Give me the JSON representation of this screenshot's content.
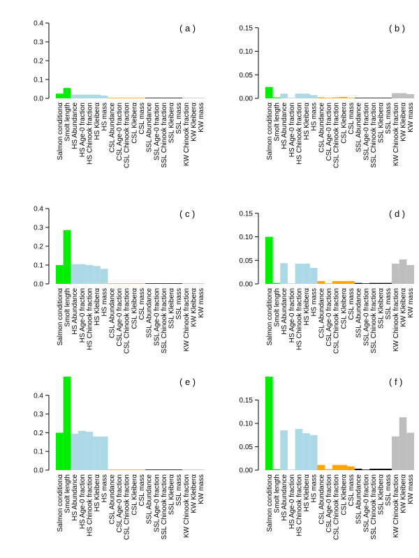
{
  "colors": {
    "salmon": "#00ee00",
    "harbor_seal": "#add8e6",
    "california_sea_lion": "#ffa500",
    "steller_sea_lion": "#000000",
    "killer_whale": "#bebebe"
  },
  "chart_data": [
    {
      "type": "bar",
      "panel": "( a )",
      "categories": [
        "Salmon conditionα",
        "Smolt length",
        "HS Abundance",
        "HS Age-0 fraction",
        "HS Chinook fraction",
        "HS Kleiberα",
        "HS mass",
        "CSL Abundance",
        "CSL Age-0 fraction",
        "CSL Chinook fraction",
        "CSL Kleiberα",
        "CSL mass",
        "SSL Abundance",
        "SSL Age-0 fraction",
        "SSL Chinook fraction",
        "SSL Kleiberα",
        "SSL mass",
        "KW Chinook fraction",
        "KW Kleiberα",
        "KW mass"
      ],
      "groups": [
        "salmon",
        "salmon",
        "harbor_seal",
        "harbor_seal",
        "harbor_seal",
        "harbor_seal",
        "harbor_seal",
        "california_sea_lion",
        "california_sea_lion",
        "california_sea_lion",
        "california_sea_lion",
        "california_sea_lion",
        "steller_sea_lion",
        "steller_sea_lion",
        "steller_sea_lion",
        "steller_sea_lion",
        "steller_sea_lion",
        "killer_whale",
        "killer_whale",
        "killer_whale"
      ],
      "values": [
        0.025,
        0.055,
        0.02,
        0.02,
        0.02,
        0.02,
        0.015,
        0.002,
        0.002,
        0.002,
        0.002,
        0.002,
        0.001,
        0.001,
        0.001,
        0.001,
        0.001,
        0.0005,
        0.0005,
        0.0005
      ],
      "yticks": [
        0.0,
        0.1,
        0.2,
        0.3,
        0.4
      ],
      "ytick_labels": [
        "0.0",
        "0.1",
        "0.2",
        "0.3",
        "0.4"
      ],
      "ylim": [
        0,
        0.4
      ]
    },
    {
      "type": "bar",
      "panel": "( b )",
      "categories": [
        "Salmon conditionα",
        "Smolt length",
        "HS Abundance",
        "HS Age-0 fraction",
        "HS Chinook fraction",
        "HS Kleiberα",
        "HS mass",
        "CSL Abundance",
        "CSL Age-0 fraction",
        "CSL Chinook fraction",
        "CSL Kleiberα",
        "CSL mass",
        "SSL Abundance",
        "SSL Age-0 fraction",
        "SSL Chinook fraction",
        "SSL Kleiberα",
        "SSL mass",
        "KW Chinook fraction",
        "KW Kleiberα",
        "KW mass"
      ],
      "groups": [
        "salmon",
        "salmon",
        "harbor_seal",
        "harbor_seal",
        "harbor_seal",
        "harbor_seal",
        "harbor_seal",
        "california_sea_lion",
        "california_sea_lion",
        "california_sea_lion",
        "california_sea_lion",
        "california_sea_lion",
        "steller_sea_lion",
        "steller_sea_lion",
        "steller_sea_lion",
        "steller_sea_lion",
        "steller_sea_lion",
        "killer_whale",
        "killer_whale",
        "killer_whale"
      ],
      "values": [
        0.024,
        0.002,
        0.01,
        0.001,
        0.01,
        0.01,
        0.007,
        0.002,
        0.001,
        0.002,
        0.003,
        0.001,
        0.001,
        0.001,
        0.001,
        0.001,
        0.001,
        0.011,
        0.011,
        0.009
      ],
      "yticks": [
        0.0,
        0.05,
        0.1,
        0.15
      ],
      "ytick_labels": [
        "0.00",
        "0.05",
        "0.10",
        "0.15"
      ],
      "ylim": [
        0,
        0.16
      ]
    },
    {
      "type": "bar",
      "panel": "( c )",
      "categories": [
        "Salmon conditionα",
        "Smolt length",
        "HS Abundance",
        "HS Age-0 fraction",
        "HS Chinook fraction",
        "HS Kleiberα",
        "HS mass",
        "CSL Abundance",
        "CSL Age-0 fraction",
        "CSL Chinook fraction",
        "CSL Kleiberα",
        "CSL mass",
        "SSL Abundance",
        "SSL Age-0 fraction",
        "SSL Chinook fraction",
        "SSL Kleiberα",
        "SSL mass",
        "KW Chinook fraction",
        "KW Kleiberα",
        "KW mass"
      ],
      "groups": [
        "salmon",
        "salmon",
        "harbor_seal",
        "harbor_seal",
        "harbor_seal",
        "harbor_seal",
        "harbor_seal",
        "california_sea_lion",
        "california_sea_lion",
        "california_sea_lion",
        "california_sea_lion",
        "california_sea_lion",
        "steller_sea_lion",
        "steller_sea_lion",
        "steller_sea_lion",
        "steller_sea_lion",
        "steller_sea_lion",
        "killer_whale",
        "killer_whale",
        "killer_whale"
      ],
      "values": [
        0.1,
        0.285,
        0.105,
        0.105,
        0.1,
        0.095,
        0.08,
        0.002,
        0.002,
        0.002,
        0.002,
        0.002,
        0.001,
        0.001,
        0.001,
        0.001,
        0.001,
        0.0005,
        0.0005,
        0.0005
      ],
      "yticks": [
        0.0,
        0.1,
        0.2,
        0.3,
        0.4
      ],
      "ytick_labels": [
        "0.0",
        "0.1",
        "0.2",
        "0.3",
        "0.4"
      ],
      "ylim": [
        0,
        0.4
      ]
    },
    {
      "type": "bar",
      "panel": "( d )",
      "categories": [
        "Salmon conditionα",
        "Smolt length",
        "HS Abundance",
        "HS Age-0 fraction",
        "HS Chinook fraction",
        "HS Kleiberα",
        "HS mass",
        "CSL Abundance",
        "CSL Age-0 fraction",
        "CSL Chinook fraction",
        "CSL Kleiberα",
        "CSL mass",
        "SSL Abundance",
        "SSL Age-0 fraction",
        "SSL Chinook fraction",
        "SSL Kleiberα",
        "SSL mass",
        "KW Chinook fraction",
        "KW Kleiberα",
        "KW mass"
      ],
      "groups": [
        "salmon",
        "salmon",
        "harbor_seal",
        "harbor_seal",
        "harbor_seal",
        "harbor_seal",
        "harbor_seal",
        "california_sea_lion",
        "california_sea_lion",
        "california_sea_lion",
        "california_sea_lion",
        "california_sea_lion",
        "steller_sea_lion",
        "steller_sea_lion",
        "steller_sea_lion",
        "steller_sea_lion",
        "steller_sea_lion",
        "killer_whale",
        "killer_whale",
        "killer_whale"
      ],
      "values": [
        0.1,
        0.002,
        0.044,
        0.001,
        0.043,
        0.043,
        0.034,
        0.006,
        0.001,
        0.006,
        0.006,
        0.006,
        0.002,
        0.001,
        0.002,
        0.002,
        0.002,
        0.043,
        0.052,
        0.04
      ],
      "yticks": [
        0.0,
        0.05,
        0.1,
        0.15
      ],
      "ytick_labels": [
        "0.00",
        "0.05",
        "0.10",
        "0.15"
      ],
      "ylim": [
        0,
        0.16
      ]
    },
    {
      "type": "bar",
      "panel": "( e )",
      "categories": [
        "Salmon conditionα",
        "Smolt length",
        "HS Abundance",
        "HS Age-0 fraction",
        "HS Chinook fraction",
        "HS Kleiberα",
        "HS mass",
        "CSL Abundance",
        "CSL Age-0 fraction",
        "CSL Chinook fraction",
        "CSL Kleiberα",
        "CSL mass",
        "SSL Abundance",
        "SSL Age-0 fraction",
        "SSL Chinook fraction",
        "SSL Kleiberα",
        "SSL mass",
        "KW Chinook fraction",
        "KW Kleiberα",
        "KW mass"
      ],
      "groups": [
        "salmon",
        "salmon",
        "harbor_seal",
        "harbor_seal",
        "harbor_seal",
        "harbor_seal",
        "harbor_seal",
        "california_sea_lion",
        "california_sea_lion",
        "california_sea_lion",
        "california_sea_lion",
        "california_sea_lion",
        "steller_sea_lion",
        "steller_sea_lion",
        "steller_sea_lion",
        "steller_sea_lion",
        "steller_sea_lion",
        "killer_whale",
        "killer_whale",
        "killer_whale"
      ],
      "values": [
        0.2,
        0.5,
        0.195,
        0.21,
        0.205,
        0.18,
        0.18,
        0.003,
        0.003,
        0.003,
        0.003,
        0.003,
        0.002,
        0.002,
        0.002,
        0.002,
        0.002,
        0.001,
        0.001,
        0.001
      ],
      "yticks": [
        0.0,
        0.1,
        0.2,
        0.3,
        0.4
      ],
      "ytick_labels": [
        "0.0",
        "0.1",
        "0.2",
        "0.3",
        "0.4"
      ],
      "ylim": [
        0,
        0.5
      ]
    },
    {
      "type": "bar",
      "panel": "( f )",
      "categories": [
        "Salmon conditionα",
        "Smolt length",
        "HS Abundance",
        "HS Age-0 fraction",
        "HS Chinook fraction",
        "HS Kleiberα",
        "HS mass",
        "CSL Abundance",
        "CSL Age-0 fraction",
        "CSL Chinook fraction",
        "CSL Kleiberα",
        "CSL mass",
        "SSL Abundance",
        "SSL Age-0 fraction",
        "SSL Chinook fraction",
        "SSL Kleiberα",
        "SSL mass",
        "KW Chinook fraction",
        "KW Kleiberα",
        "KW mass"
      ],
      "groups": [
        "salmon",
        "salmon",
        "harbor_seal",
        "harbor_seal",
        "harbor_seal",
        "harbor_seal",
        "harbor_seal",
        "california_sea_lion",
        "california_sea_lion",
        "california_sea_lion",
        "california_sea_lion",
        "california_sea_lion",
        "steller_sea_lion",
        "steller_sea_lion",
        "steller_sea_lion",
        "steller_sea_lion",
        "steller_sea_lion",
        "killer_whale",
        "killer_whale",
        "killer_whale"
      ],
      "values": [
        0.2,
        0.002,
        0.085,
        0.001,
        0.088,
        0.079,
        0.075,
        0.011,
        0.002,
        0.011,
        0.011,
        0.008,
        0.003,
        0.001,
        0.003,
        0.003,
        0.003,
        0.072,
        0.113,
        0.08
      ],
      "yticks": [
        0.0,
        0.05,
        0.1,
        0.15
      ],
      "ytick_labels": [
        "0.00",
        "0.05",
        "0.10",
        "0.15"
      ],
      "ylim": [
        0,
        0.2
      ]
    }
  ]
}
